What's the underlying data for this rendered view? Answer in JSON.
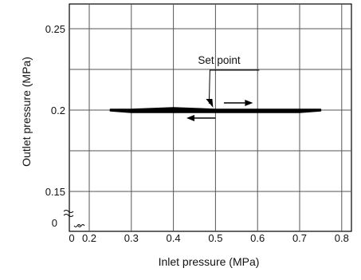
{
  "chart_data": {
    "type": "line",
    "xlabel": "Inlet pressure (MPa)",
    "ylabel": "Outlet pressure (MPa)",
    "xlim": [
      0.15,
      0.82
    ],
    "ylim": [
      0.13,
      0.26
    ],
    "x_ticks": [
      0.2,
      0.3,
      0.4,
      0.5,
      0.6,
      0.7,
      0.8
    ],
    "x_tick_labels": [
      "0.2",
      "0.3",
      "0.4",
      "0.5",
      "0.6",
      "0.7",
      "0.8"
    ],
    "y_ticks": [
      0.15,
      0.2,
      0.25
    ],
    "y_tick_labels": [
      "0.15",
      "0.2",
      "0.25"
    ],
    "x_origin_label": "0",
    "y_origin_label": "0",
    "axis_break": true,
    "grid": true,
    "series": [
      {
        "x": [
          0.25,
          0.3,
          0.4,
          0.5,
          0.6,
          0.7,
          0.75
        ],
        "upper": [
          0.2,
          0.2,
          0.201,
          0.2,
          0.2,
          0.2,
          0.2
        ],
        "lower": [
          0.2,
          0.199,
          0.199,
          0.199,
          0.199,
          0.199,
          0.2
        ]
      }
    ],
    "annotations": [
      {
        "text": "Set point",
        "x": 0.5,
        "y": 0.2
      }
    ],
    "arrows": [
      {
        "direction": "right",
        "meaning": "increasing inlet pressure"
      },
      {
        "direction": "left",
        "meaning": "decreasing inlet pressure"
      }
    ],
    "colors": {
      "line": "#000000",
      "grid": "#555555",
      "background": "#ffffff"
    }
  }
}
